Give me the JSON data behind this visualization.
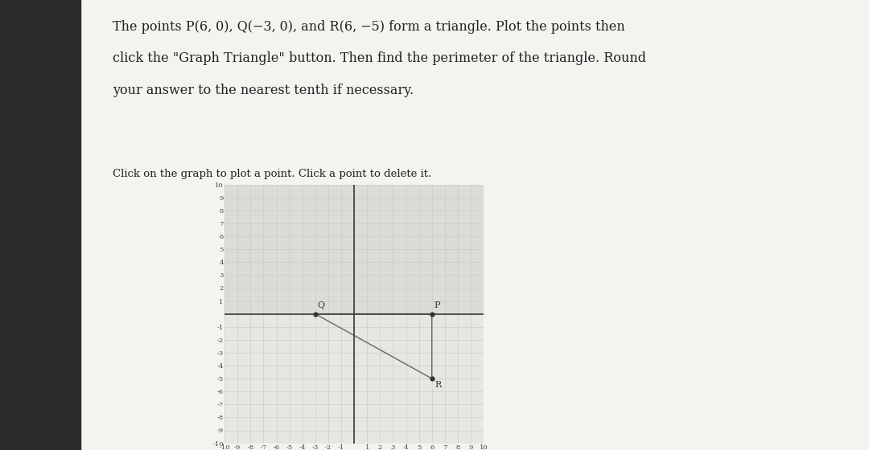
{
  "line1": "The points P(6,  0), Q(−3,  0), and R(6,  −5) form a triangle. Plot the points then",
  "line2": "click the \"Graph Triangle\" button. Then find the perimeter of the triangle. Round",
  "line3": "your answer to the nearest tenth if necessary.",
  "subtitle": "Click on the graph to plot a point. Click a point to delete it.",
  "P": [
    6,
    0
  ],
  "Q": [
    -3,
    0
  ],
  "R": [
    6,
    -5
  ],
  "axis_min": -10,
  "axis_max": 10,
  "grid_color": "#c8c8c8",
  "axis_color": "#444444",
  "triangle_color": "#666666",
  "point_color": "#333333",
  "label_color": "#333333",
  "bg_left": "#2a2a2a",
  "bg_right": "#e8e5e2",
  "panel_color": "#f5f3f0",
  "grid_bg_upper": "#dddbd8",
  "grid_bg_lower": "#e8e6e3",
  "text_color": "#222222",
  "font_size_title": 11.5,
  "font_size_subtitle": 9.5,
  "font_size_tick": 6,
  "font_size_label": 8
}
